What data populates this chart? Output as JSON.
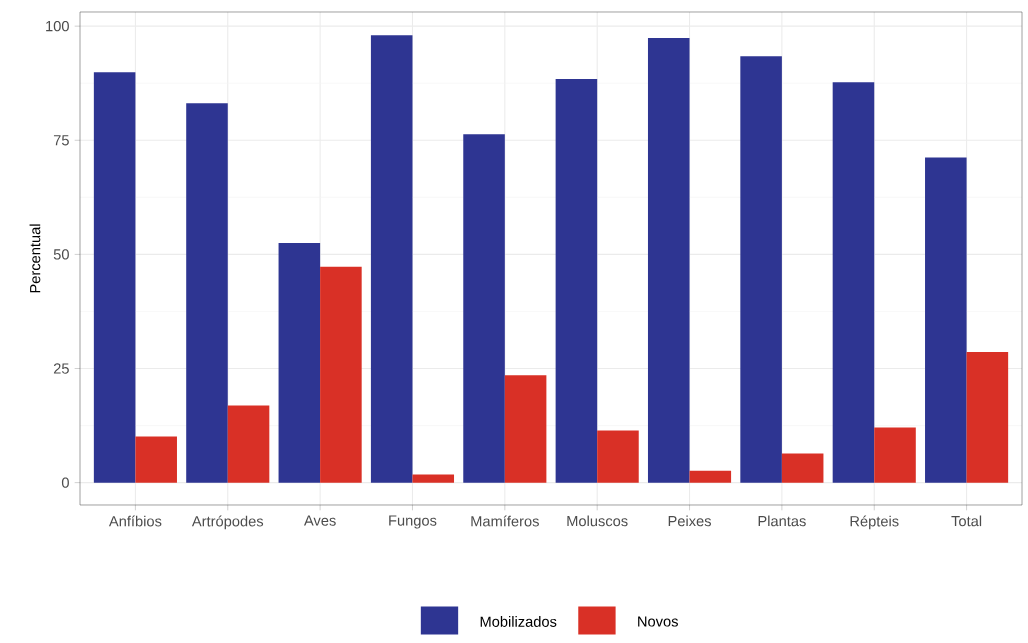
{
  "chart_data": {
    "type": "bar",
    "ylabel": "Percentual",
    "categories": [
      "Anfíbios",
      "Artrópodes",
      "Aves",
      "Fungos",
      "Mamíferos",
      "Moluscos",
      "Peixes",
      "Plantas",
      "Répteis",
      "Total"
    ],
    "series": [
      {
        "name": "Mobilizados",
        "color": "#2e3592",
        "values": [
          89.9,
          83.1,
          52.5,
          98.0,
          76.3,
          88.4,
          97.4,
          93.4,
          87.7,
          71.2
        ]
      },
      {
        "name": "Novos",
        "color": "#d93026",
        "values": [
          10.1,
          16.9,
          47.3,
          1.8,
          23.5,
          11.4,
          2.6,
          6.4,
          12.1,
          28.6
        ]
      }
    ],
    "ylim": [
      -4.9,
      103.1
    ],
    "yticks": [
      0,
      25,
      50,
      75,
      100
    ],
    "grid": true,
    "legend": "bottom"
  }
}
